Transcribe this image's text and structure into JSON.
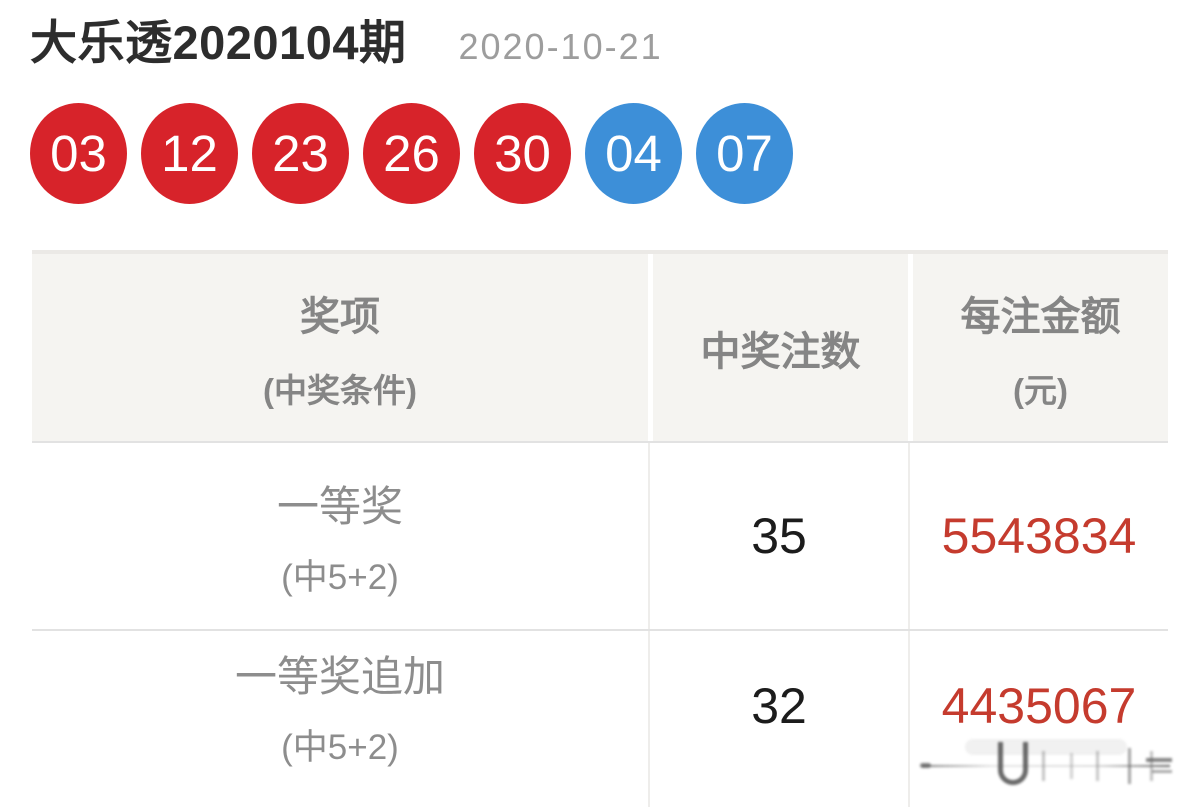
{
  "header": {
    "title": "大乐透2020104期",
    "date": "2020-10-21"
  },
  "balls": {
    "front": [
      "03",
      "12",
      "23",
      "26",
      "30"
    ],
    "back": [
      "04",
      "07"
    ]
  },
  "table": {
    "headers": [
      {
        "line1": "奖项",
        "line2": "(中奖条件)"
      },
      {
        "line1": "中奖注数",
        "line2": ""
      },
      {
        "line1": "每注金额",
        "line2": "(元)"
      }
    ],
    "rows": [
      {
        "prize": "一等奖",
        "condition": "(中5+2)",
        "count": "35",
        "amount": "5543834"
      },
      {
        "prize": "一等奖追加",
        "condition": "(中5+2)",
        "count": "32",
        "amount": "4435067"
      }
    ]
  },
  "colors": {
    "front_ball": "#d7232a",
    "back_ball": "#3d8fd8",
    "amount_red": "#c53b2e",
    "title_text": "#2d2d2d",
    "date_text": "#9d9d9d",
    "header_text": "#858585",
    "prize_text": "#8d8d8d",
    "count_text": "#1c1c1c",
    "header_bg": "#f5f4f1"
  }
}
